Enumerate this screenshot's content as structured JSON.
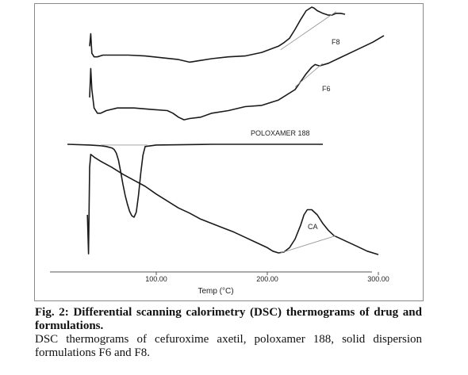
{
  "figure": {
    "caption_title": "Fig. 2: Differential scanning calorimetry (DSC) thermograms of drug and formulations.",
    "caption_body": "DSC thermograms of cefuroxime axetil, poloxamer 188, solid dispersion formulations F6 and F8."
  },
  "chart_data": {
    "type": "line",
    "title": "",
    "xlabel": "Temp (°C)",
    "ylabel": "",
    "xlim": [
      20,
      315
    ],
    "ticks": [
      "100.00",
      "200.00",
      "300.00"
    ],
    "tick_values": [
      100,
      200,
      300
    ],
    "grid": false,
    "legend": "none",
    "y_units": "relative heat flow (vertical offsets per curve, no numeric scale shown)",
    "series": [
      {
        "name": "F8",
        "color": "#1a1a1a",
        "x": [
          40,
          41,
          42,
          44,
          47,
          52,
          60,
          75,
          90,
          105,
          120,
          130,
          140,
          150,
          165,
          180,
          195,
          210,
          215,
          220,
          225,
          230,
          235,
          240,
          242,
          245,
          250,
          255,
          258,
          262,
          266,
          270
        ],
        "y": [
          0.56,
          0.7,
          0.48,
          0.44,
          0.44,
          0.46,
          0.46,
          0.46,
          0.45,
          0.43,
          0.41,
          0.38,
          0.4,
          0.42,
          0.44,
          0.45,
          0.49,
          0.56,
          0.6,
          0.65,
          0.75,
          0.86,
          0.96,
          1.0,
          0.99,
          0.96,
          0.93,
          0.91,
          0.91,
          0.93,
          0.93,
          0.92
        ]
      },
      {
        "name": "F6",
        "color": "#1a1a1a",
        "x": [
          40,
          41,
          42,
          44,
          47,
          50,
          55,
          65,
          80,
          95,
          110,
          115,
          120,
          125,
          130,
          140,
          150,
          165,
          180,
          195,
          210,
          225,
          230,
          235,
          240,
          243,
          247,
          255,
          265,
          280,
          295,
          305
        ],
        "y": [
          0.38,
          0.6,
          0.44,
          0.3,
          0.26,
          0.26,
          0.28,
          0.3,
          0.3,
          0.29,
          0.28,
          0.26,
          0.23,
          0.21,
          0.22,
          0.23,
          0.26,
          0.28,
          0.31,
          0.32,
          0.36,
          0.44,
          0.5,
          0.56,
          0.61,
          0.63,
          0.62,
          0.64,
          0.68,
          0.74,
          0.8,
          0.85
        ]
      },
      {
        "name": "POLOXAMER 188",
        "color": "#1a1a1a",
        "x": [
          20,
          40,
          50,
          55,
          60,
          62,
          64,
          66,
          68,
          70,
          72,
          74,
          76,
          78,
          80,
          82,
          84,
          86,
          88,
          90,
          100,
          150,
          250
        ],
        "y": [
          0.0,
          -0.01,
          -0.02,
          -0.03,
          -0.05,
          -0.07,
          -0.12,
          -0.22,
          -0.38,
          -0.55,
          -0.7,
          -0.82,
          -0.92,
          -0.98,
          -1.0,
          -0.93,
          -0.7,
          -0.4,
          -0.15,
          -0.03,
          -0.01,
          0.0,
          0.0
        ]
      },
      {
        "name": "CA",
        "color": "#1a1a1a",
        "x": [
          38,
          39,
          40,
          41,
          45,
          50,
          60,
          70,
          80,
          90,
          100,
          110,
          120,
          130,
          140,
          150,
          160,
          170,
          180,
          190,
          200,
          205,
          210,
          215,
          220,
          225,
          230,
          233,
          236,
          240,
          245,
          250,
          255,
          260,
          270,
          280,
          290,
          300
        ],
        "y": [
          0.0,
          -0.45,
          0.55,
          0.7,
          0.66,
          0.62,
          0.55,
          0.47,
          0.4,
          0.33,
          0.24,
          0.16,
          0.08,
          0.02,
          -0.05,
          -0.1,
          -0.15,
          -0.2,
          -0.26,
          -0.32,
          -0.38,
          -0.42,
          -0.44,
          -0.43,
          -0.38,
          -0.28,
          -0.12,
          0.0,
          0.06,
          0.06,
          0.0,
          -0.1,
          -0.18,
          -0.24,
          -0.3,
          -0.36,
          -0.42,
          -0.46
        ]
      }
    ],
    "baselines": [
      {
        "series": "F8",
        "x": [
          212,
          262
        ],
        "y": [
          0.52,
          0.95
        ]
      },
      {
        "series": "F6",
        "x": [
          225,
          250
        ],
        "y": [
          0.46,
          0.64
        ]
      },
      {
        "series": "POLOXAMER 188",
        "x": [
          50,
          92
        ],
        "y": [
          -0.01,
          -0.01
        ]
      },
      {
        "series": "CA",
        "x": [
          212,
          262
        ],
        "y": [
          -0.44,
          -0.24
        ]
      }
    ]
  }
}
